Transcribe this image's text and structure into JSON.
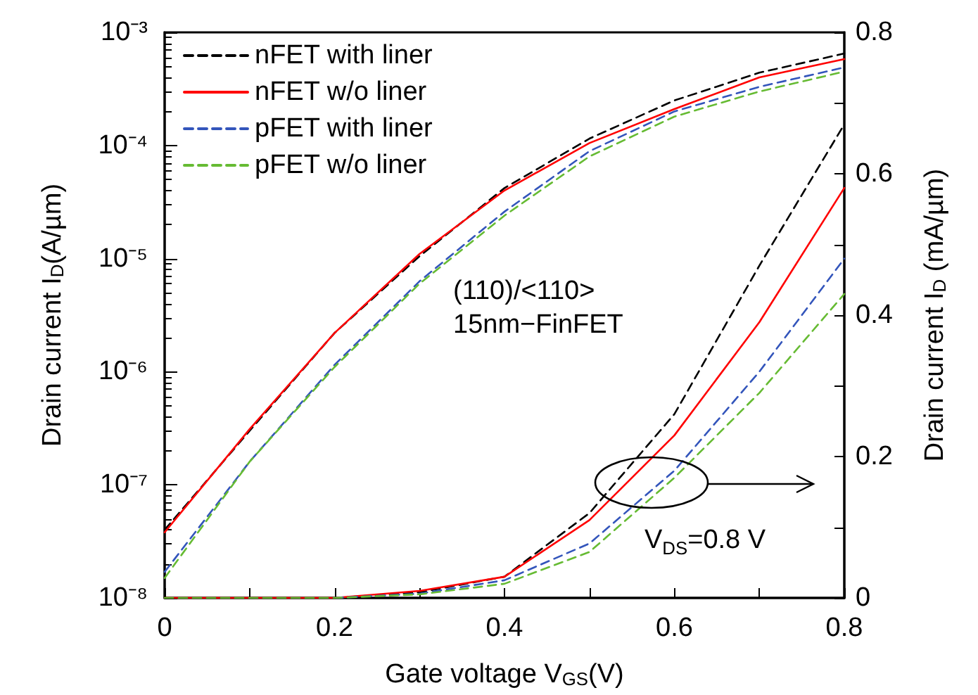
{
  "chart_data": {
    "type": "line",
    "xlabel": "Gate voltage V$_{GS}$(V)",
    "ylabel": "Drain current I$_{D}$(A/µm)",
    "y2label": "Drain current I$_{D}$ (mA/µm)",
    "x": [
      0,
      0.1,
      0.2,
      0.3,
      0.4,
      0.5,
      0.6,
      0.7,
      0.8
    ],
    "xlim": [
      0,
      0.8
    ],
    "xticks": [
      0,
      0.2,
      0.4,
      0.6,
      0.8
    ],
    "log": "y",
    "ylim": [
      1e-08,
      0.001
    ],
    "yticks": [
      {
        "value": 1e-08,
        "label": "10⁻⁸"
      },
      {
        "value": 1e-07,
        "label": "10⁻⁷"
      },
      {
        "value": 1e-06,
        "label": "10⁻⁶"
      },
      {
        "value": 1e-05,
        "label": "10⁻⁵"
      },
      {
        "value": 0.0001,
        "label": "10⁻⁴"
      },
      {
        "value": 0.001,
        "label": "10⁻³"
      }
    ],
    "y2lim": [
      0,
      0.8
    ],
    "y2ticks": [
      0,
      0.2,
      0.4,
      0.6,
      0.8
    ],
    "grid": false,
    "legend": "top left",
    "marker": "none",
    "annotations": [
      "(110)/<110>\n15nm−FinFET",
      "V$_{DS}$=0.8 V"
    ],
    "series": [
      {
        "name": "nFET with liner",
        "color": "#000000",
        "line_style": "dashed",
        "values": [
          4e-08,
          3e-07,
          2.2e-06,
          1.05e-05,
          4.2e-05,
          0.000115,
          0.00025,
          0.00044,
          0.00065
        ]
      },
      {
        "name": "nFET w/o liner",
        "color": "#ff0000",
        "line_style": "solid",
        "values": [
          3.8e-08,
          3.1e-07,
          2.2e-06,
          1.1e-05,
          4e-05,
          0.000105,
          0.00021,
          0.0004,
          0.00058
        ]
      },
      {
        "name": "pFET with liner",
        "color": "#3355bb",
        "line_style": "dashed",
        "values": [
          1.7e-08,
          1.6e-07,
          1.15e-06,
          6.3e-06,
          2.6e-05,
          8.9e-05,
          0.0002,
          0.00033,
          0.00049
        ]
      },
      {
        "name": "pFET w/o liner",
        "color": "#66bb33",
        "line_style": "dashed",
        "values": [
          1.5e-08,
          1.6e-07,
          1.1e-06,
          6e-06,
          2.4e-05,
          8e-05,
          0.00018,
          0.0003,
          0.00045
        ]
      },
      {
        "color": "#000000",
        "line_style": "dashed",
        "axis": "y2",
        "values": [
          0,
          0,
          0,
          0.008,
          0.03,
          0.12,
          0.26,
          0.47,
          0.67
        ]
      },
      {
        "color": "#ff0000",
        "line_style": "solid",
        "axis": "y2",
        "values": [
          0,
          0,
          0,
          0.01,
          0.03,
          0.11,
          0.23,
          0.39,
          0.58
        ]
      },
      {
        "color": "#3355bb",
        "line_style": "dashed",
        "axis": "y2",
        "values": [
          null,
          null,
          0,
          0.006,
          0.025,
          0.077,
          0.18,
          0.32,
          0.48
        ]
      },
      {
        "color": "#66bb33",
        "line_style": "dashed",
        "axis": "y2",
        "values": [
          0,
          0,
          0,
          0.005,
          0.02,
          0.065,
          0.17,
          0.29,
          0.43
        ]
      }
    ]
  }
}
